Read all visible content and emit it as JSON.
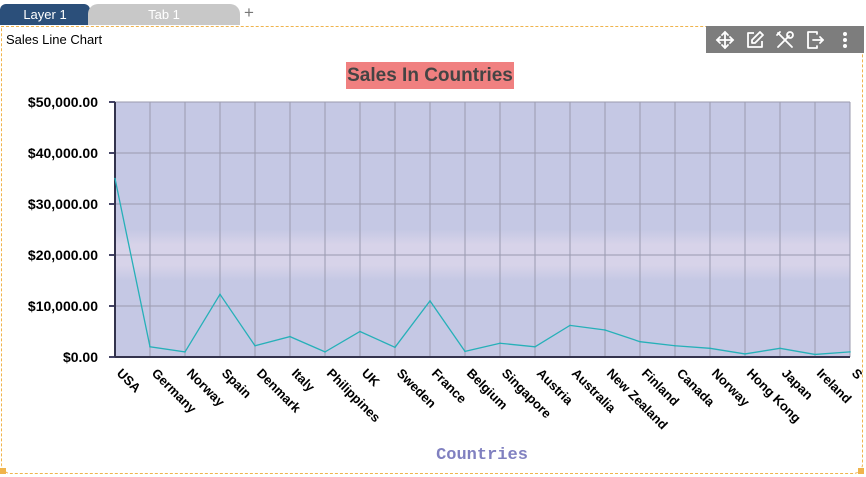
{
  "tabs": [
    {
      "label": "Layer 1",
      "active": true
    },
    {
      "label": "Tab 1",
      "active": false
    }
  ],
  "add_tab_label": "+",
  "panel": {
    "title": "Sales Line Chart",
    "toolbar": [
      "move-icon",
      "edit-icon",
      "tools-icon",
      "export-icon",
      "more-icon"
    ]
  },
  "colors": {
    "plot_background": "#c5c8e4",
    "band": "#d7d3e9",
    "line": "#26b0b8",
    "title_background": "#f08080",
    "xlabel": "#8080c0",
    "active_tab": "#2b4f7a"
  },
  "chart_data": {
    "type": "line",
    "title": "Sales In Countries",
    "xlabel": "Countries",
    "ylabel": "",
    "ylim": [
      0,
      50000
    ],
    "yticks": [
      "$0.00",
      "$10,000.00",
      "$20,000.00",
      "$30,000.00",
      "$40,000.00",
      "$50,000.00"
    ],
    "grid": true,
    "categories": [
      "USA",
      "Germany",
      "Norway",
      "Spain",
      "Denmark",
      "Italy",
      "Philippines",
      "UK",
      "Sweden",
      "France",
      "Belgium",
      "Singapore",
      "Austria",
      "Australia",
      "New Zealand",
      "Finland",
      "Canada",
      "Norway",
      "Hong Kong",
      "Japan",
      "Ireland",
      "S"
    ],
    "series": [
      {
        "values": [
          35000,
          2000,
          1000,
          12300,
          2200,
          4000,
          1000,
          5000,
          1900,
          11000,
          1100,
          2700,
          2000,
          6200,
          5300,
          3000,
          2200,
          1700,
          600,
          1700,
          500,
          1000
        ]
      }
    ]
  }
}
